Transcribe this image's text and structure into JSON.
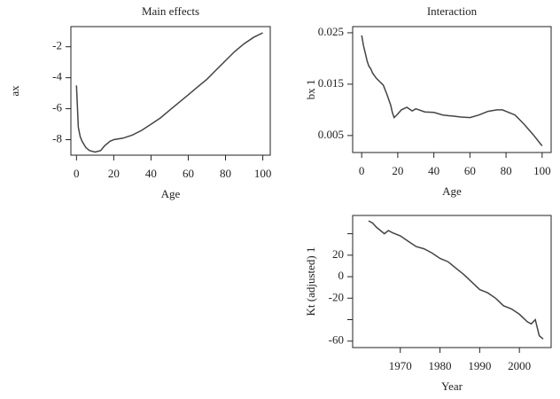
{
  "chart_data": [
    {
      "type": "line",
      "title": "Main effects",
      "xlabel": "Age",
      "ylabel": "ax",
      "color": "#444444",
      "x": [
        0,
        1,
        2,
        3,
        5,
        7,
        10,
        13,
        15,
        18,
        20,
        25,
        30,
        35,
        40,
        45,
        50,
        55,
        60,
        65,
        70,
        75,
        80,
        85,
        90,
        95,
        100
      ],
      "values": [
        -4.5,
        -7.2,
        -7.8,
        -8.1,
        -8.5,
        -8.7,
        -8.8,
        -8.7,
        -8.4,
        -8.1,
        -8.0,
        -7.9,
        -7.7,
        -7.4,
        -7.0,
        -6.6,
        -6.1,
        -5.6,
        -5.1,
        -4.6,
        -4.1,
        -3.5,
        -2.9,
        -2.3,
        -1.8,
        -1.4,
        -1.1
      ],
      "xlim": [
        -3,
        104
      ],
      "ylim": [
        -9,
        -0.7
      ],
      "xticks": [
        0,
        20,
        40,
        60,
        80,
        100
      ],
      "yticks": [
        -8,
        -6,
        -4,
        -2
      ]
    },
    {
      "type": "line",
      "title": "Interaction",
      "xlabel": "Age",
      "ylabel": "bx 1",
      "color": "#444444",
      "x": [
        0,
        1,
        2,
        3,
        4,
        5,
        6,
        8,
        10,
        12,
        14,
        15,
        16,
        17,
        18,
        20,
        22,
        25,
        28,
        30,
        35,
        40,
        45,
        50,
        55,
        60,
        65,
        70,
        75,
        78,
        80,
        85,
        90,
        95,
        100
      ],
      "values": [
        0.0245,
        0.0225,
        0.021,
        0.0195,
        0.0185,
        0.018,
        0.0172,
        0.0162,
        0.0155,
        0.0148,
        0.013,
        0.012,
        0.011,
        0.0095,
        0.0085,
        0.0092,
        0.01,
        0.0105,
        0.0098,
        0.0102,
        0.0096,
        0.0095,
        0.009,
        0.0088,
        0.0086,
        0.0085,
        0.009,
        0.0097,
        0.01,
        0.01,
        0.0097,
        0.009,
        0.0072,
        0.0052,
        0.003
      ],
      "xlim": [
        -5,
        105
      ],
      "ylim": [
        0.0017,
        0.0262
      ],
      "xticks": [
        0,
        20,
        40,
        60,
        80,
        100
      ],
      "yticks": [
        0.025,
        0.015,
        0.005
      ]
    },
    {
      "type": "line",
      "xlabel": "Year",
      "ylabel": "Kt (adjusted) 1",
      "color": "#444444",
      "x": [
        1962,
        1963,
        1964,
        1965,
        1966,
        1967,
        1968,
        1970,
        1972,
        1974,
        1976,
        1978,
        1980,
        1982,
        1984,
        1986,
        1988,
        1990,
        1992,
        1994,
        1996,
        1998,
        2000,
        2002,
        2003,
        2004,
        2005,
        2006
      ],
      "values": [
        52,
        50,
        46,
        43,
        40,
        43,
        41,
        38,
        33,
        28,
        26,
        22,
        17,
        14,
        8,
        2,
        -5,
        -12,
        -15,
        -20,
        -27,
        -30,
        -35,
        -42,
        -44,
        -40,
        -55,
        -58
      ],
      "xlim": [
        1958,
        2008
      ],
      "ylim": [
        -66,
        57
      ],
      "xticks": [
        1970,
        1980,
        1990,
        2000
      ],
      "yticks": [
        -60,
        {
          "value": -40,
          "label": null
        },
        -20,
        0,
        20,
        {
          "value": 40,
          "label": null
        }
      ]
    }
  ]
}
